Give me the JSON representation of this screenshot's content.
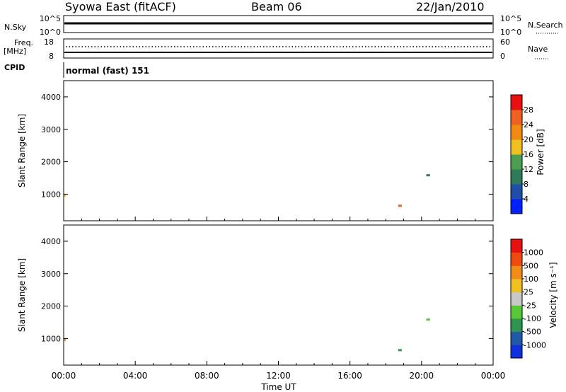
{
  "header": {
    "station": "Syowa East (fitACF)",
    "beam": "Beam 06",
    "date": "22/Jan/2010"
  },
  "top_panels": {
    "nsky_label": "N.Sky",
    "nsky_ticks": [
      "10^5",
      "10^0"
    ],
    "nsearch_label": "N.Search",
    "nsearch_ticks": [
      "10^5",
      "10^0"
    ],
    "freq_label_1": "Freq.",
    "freq_label_2": "[MHz]",
    "freq_ticks": [
      "18",
      "8"
    ],
    "nave_label": "Nave",
    "nave_ticks": [
      "60",
      "0"
    ],
    "cpid_label": "CPID",
    "cpid_value": "normal (fast) 151"
  },
  "colors": {
    "power_scale": [
      "#0020ff",
      "#1f4fa6",
      "#2e7a5a",
      "#4aa050",
      "#f0c020",
      "#f08a10",
      "#f06020",
      "#e81010"
    ],
    "velocity_scale": [
      "#e81010",
      "#f04a10",
      "#f08c1c",
      "#f0c020",
      "#c8c8c8",
      "#58c838",
      "#2e9450",
      "#1f5aa8",
      "#1030e0"
    ]
  },
  "chart_data": [
    {
      "type": "heatmap",
      "name": "power",
      "xlabel": "",
      "ylabel": "Slant Range [km]",
      "x_range": [
        "00:00",
        "24:00"
      ],
      "ylim": [
        180,
        4500
      ],
      "yticks": [
        "1000",
        "2000",
        "3000",
        "4000"
      ],
      "colorbar_label": "Power [dB]",
      "colorbar_ticks": [
        "4",
        "8",
        "12",
        "16",
        "20",
        "24",
        "28"
      ],
      "colorbar_range": [
        0,
        30
      ]
    },
    {
      "type": "heatmap",
      "name": "velocity",
      "xlabel": "Time UT",
      "ylabel": "Slant Range [km]",
      "xticks": [
        "00:00",
        "04:00",
        "08:00",
        "12:00",
        "16:00",
        "20:00",
        "00:00"
      ],
      "ylim": [
        180,
        4500
      ],
      "yticks": [
        "1000",
        "2000",
        "3000",
        "4000"
      ],
      "colorbar_label": "Velocity [m s⁻¹]",
      "colorbar_ticks": [
        "1000",
        "500",
        "100",
        "25",
        "-25",
        "-100",
        "-500",
        "-1000"
      ]
    }
  ]
}
